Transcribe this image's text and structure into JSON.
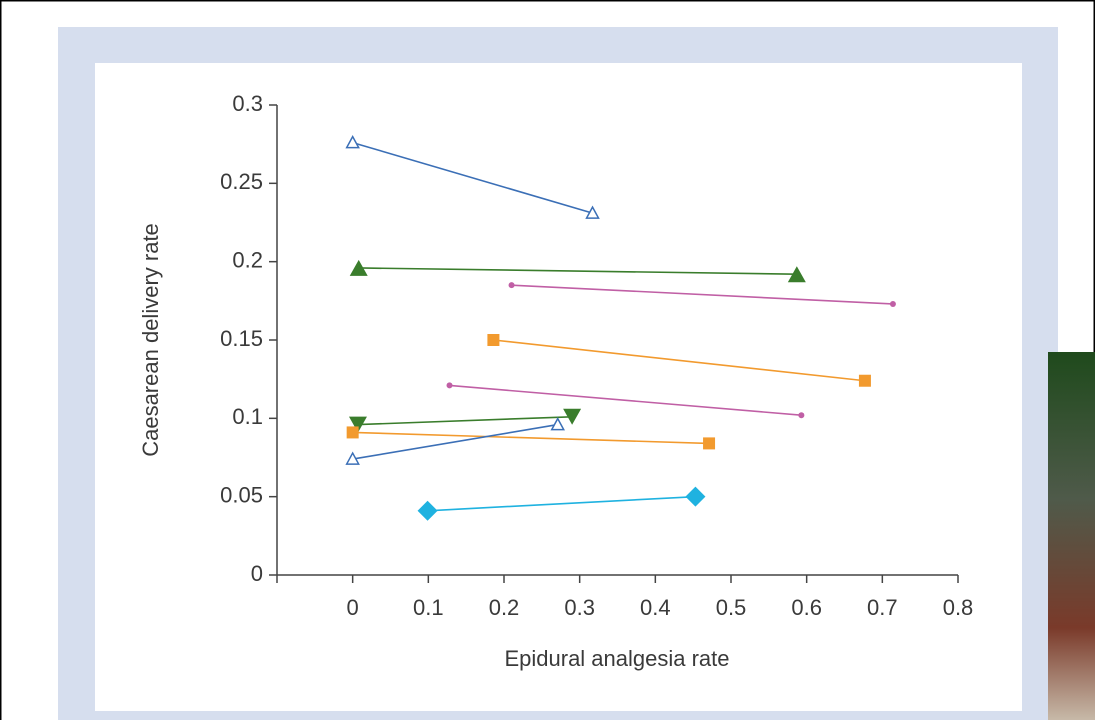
{
  "chart_data": {
    "type": "line",
    "x_label": "Epidural analgesia rate",
    "y_label": "Caesarean delivery rate",
    "xlim": [
      -0.1,
      0.8
    ],
    "xticks": [
      0,
      0.1,
      0.2,
      0.3,
      0.4,
      0.5,
      0.6,
      0.7,
      0.8
    ],
    "ylim": [
      0,
      0.3
    ],
    "yticks": [
      0,
      0.05,
      0.1,
      0.15,
      0.2,
      0.25,
      0.3
    ],
    "series": [
      {
        "color": "#3b6fb6",
        "marker": "open-triangle",
        "x": [
          0,
          0.317
        ],
        "values": [
          0.276,
          0.231
        ]
      },
      {
        "color": "#3a7d2c",
        "marker": "triangle",
        "x": [
          0.008,
          0.587
        ],
        "values": [
          0.196,
          0.192
        ]
      },
      {
        "color": "#c05fa5",
        "marker": "dot",
        "x": [
          0.21,
          0.714
        ],
        "values": [
          0.185,
          0.173
        ]
      },
      {
        "color": "#f29a2e",
        "marker": "square",
        "x": [
          0.186,
          0.677
        ],
        "values": [
          0.15,
          0.124
        ]
      },
      {
        "color": "#c05fa5",
        "marker": "dot",
        "x": [
          0.128,
          0.593
        ],
        "values": [
          0.121,
          0.102
        ]
      },
      {
        "color": "#3a7d2c",
        "marker": "down-triangle",
        "x": [
          0.007,
          0.29
        ],
        "values": [
          0.096,
          0.101
        ]
      },
      {
        "color": "#f29a2e",
        "marker": "square",
        "x": [
          0,
          0.471
        ],
        "values": [
          0.091,
          0.084
        ]
      },
      {
        "color": "#3b6fb6",
        "marker": "open-triangle",
        "x": [
          0,
          0.271
        ],
        "values": [
          0.074,
          0.096
        ]
      },
      {
        "color": "#1fb2e0",
        "marker": "diamond",
        "x": [
          0.099,
          0.453
        ],
        "values": [
          0.041,
          0.05
        ]
      }
    ]
  }
}
